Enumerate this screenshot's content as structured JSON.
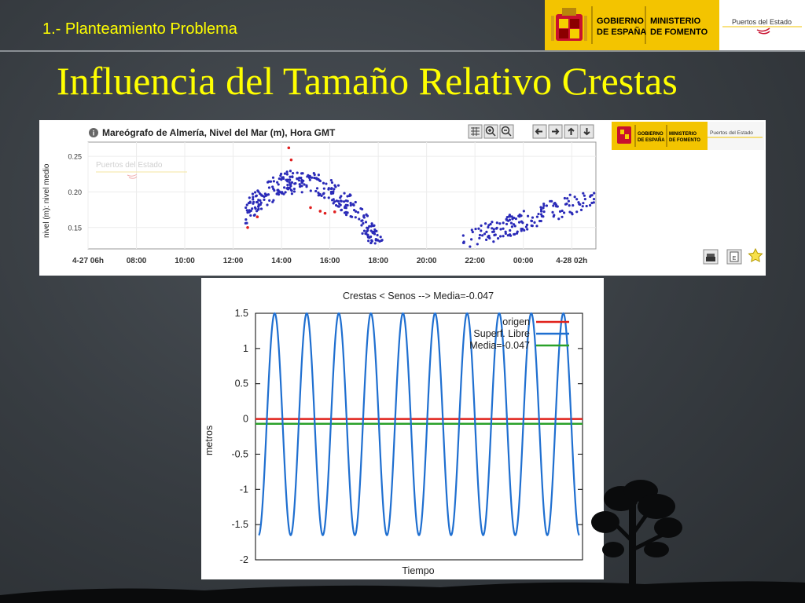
{
  "slide": {
    "section": "1.- Planteamiento Problema",
    "title": "Influencia del Tamaño Relativo Crestas"
  },
  "header_logos": {
    "gobierno": "GOBIERNO\nDE ESPAÑA",
    "gobierno_l1": "GOBIERNO",
    "gobierno_l2": "DE ESPAÑA",
    "ministerio_l1": "MINISTERIO",
    "ministerio_l2": "DE FOMENTO",
    "puertos": "Puertos del Estado"
  },
  "colors": {
    "title_yellow": "#ffff00",
    "gov_yellow": "#f3c400",
    "series_blue": "#1f6fd0",
    "origin_red": "#e0201a",
    "mean_green": "#2aa12a",
    "dots_blue": "#2a2ab8",
    "dots_red": "#e02020"
  },
  "toolbar_icons": [
    "info-icon",
    "grid-icon",
    "zoom-in-icon",
    "zoom-out-icon",
    "arrow-left-icon",
    "arrow-right-icon",
    "arrow-up-icon",
    "arrow-down-icon",
    "print-icon",
    "excel-icon",
    "star-icon"
  ],
  "chart_data": [
    {
      "type": "scatter",
      "title": "Mareógrafo de Almería, Nivel del Mar (m), Hora GMT",
      "watermark": "Puertos del Estado",
      "ylabel": "nivel (m): nivel medio",
      "xlabel": "",
      "x_ticks": [
        "4-27 06h",
        "08:00",
        "10:00",
        "12:00",
        "14:00",
        "16:00",
        "18:00",
        "20:00",
        "22:00",
        "00:00",
        "4-28 02h"
      ],
      "x_range_hours": [
        0,
        21
      ],
      "y_ticks": [
        "0.25",
        "0.20",
        "0.15"
      ],
      "ylim": [
        0.12,
        0.27
      ],
      "series": [
        {
          "color": "#2a2ab8",
          "segments": [
            {
              "x_start_hour": 6.5,
              "x_end_hour": 12.2,
              "peak_hour": 8.8,
              "y_start": 0.12,
              "y_peak": 0.215
            },
            {
              "x_start_hour": 15.5,
              "x_end_hour": 21,
              "y_start": 0.13,
              "y_end": 0.195
            }
          ]
        },
        {
          "color": "#e02020",
          "points": [
            [
              6.6,
              0.15
            ],
            [
              7.0,
              0.165
            ],
            [
              8.3,
              0.262
            ],
            [
              8.4,
              0.245
            ],
            [
              9.2,
              0.178
            ],
            [
              9.6,
              0.173
            ],
            [
              9.8,
              0.17
            ],
            [
              10.2,
              0.172
            ]
          ]
        }
      ],
      "grid": true
    },
    {
      "type": "line",
      "title": "Crestas < Senos --> Media=-0.047",
      "xlabel": "Tiempo",
      "ylabel": "metros",
      "y_ticks": [
        "1.5",
        "1",
        "0.5",
        "0",
        "-0.5",
        "-1",
        "-1.5",
        "-2"
      ],
      "ylim": [
        -2,
        1.5
      ],
      "legend_position": "top-right",
      "series": [
        {
          "name": "origen",
          "color": "#e0201a",
          "constant": 0
        },
        {
          "name": "Superf. Libre",
          "color": "#1f6fd0",
          "cycles": 10,
          "crest": 1.5,
          "trough": -1.65
        },
        {
          "name": "Media=-0.047",
          "color": "#2aa12a",
          "constant": -0.047
        }
      ]
    }
  ]
}
